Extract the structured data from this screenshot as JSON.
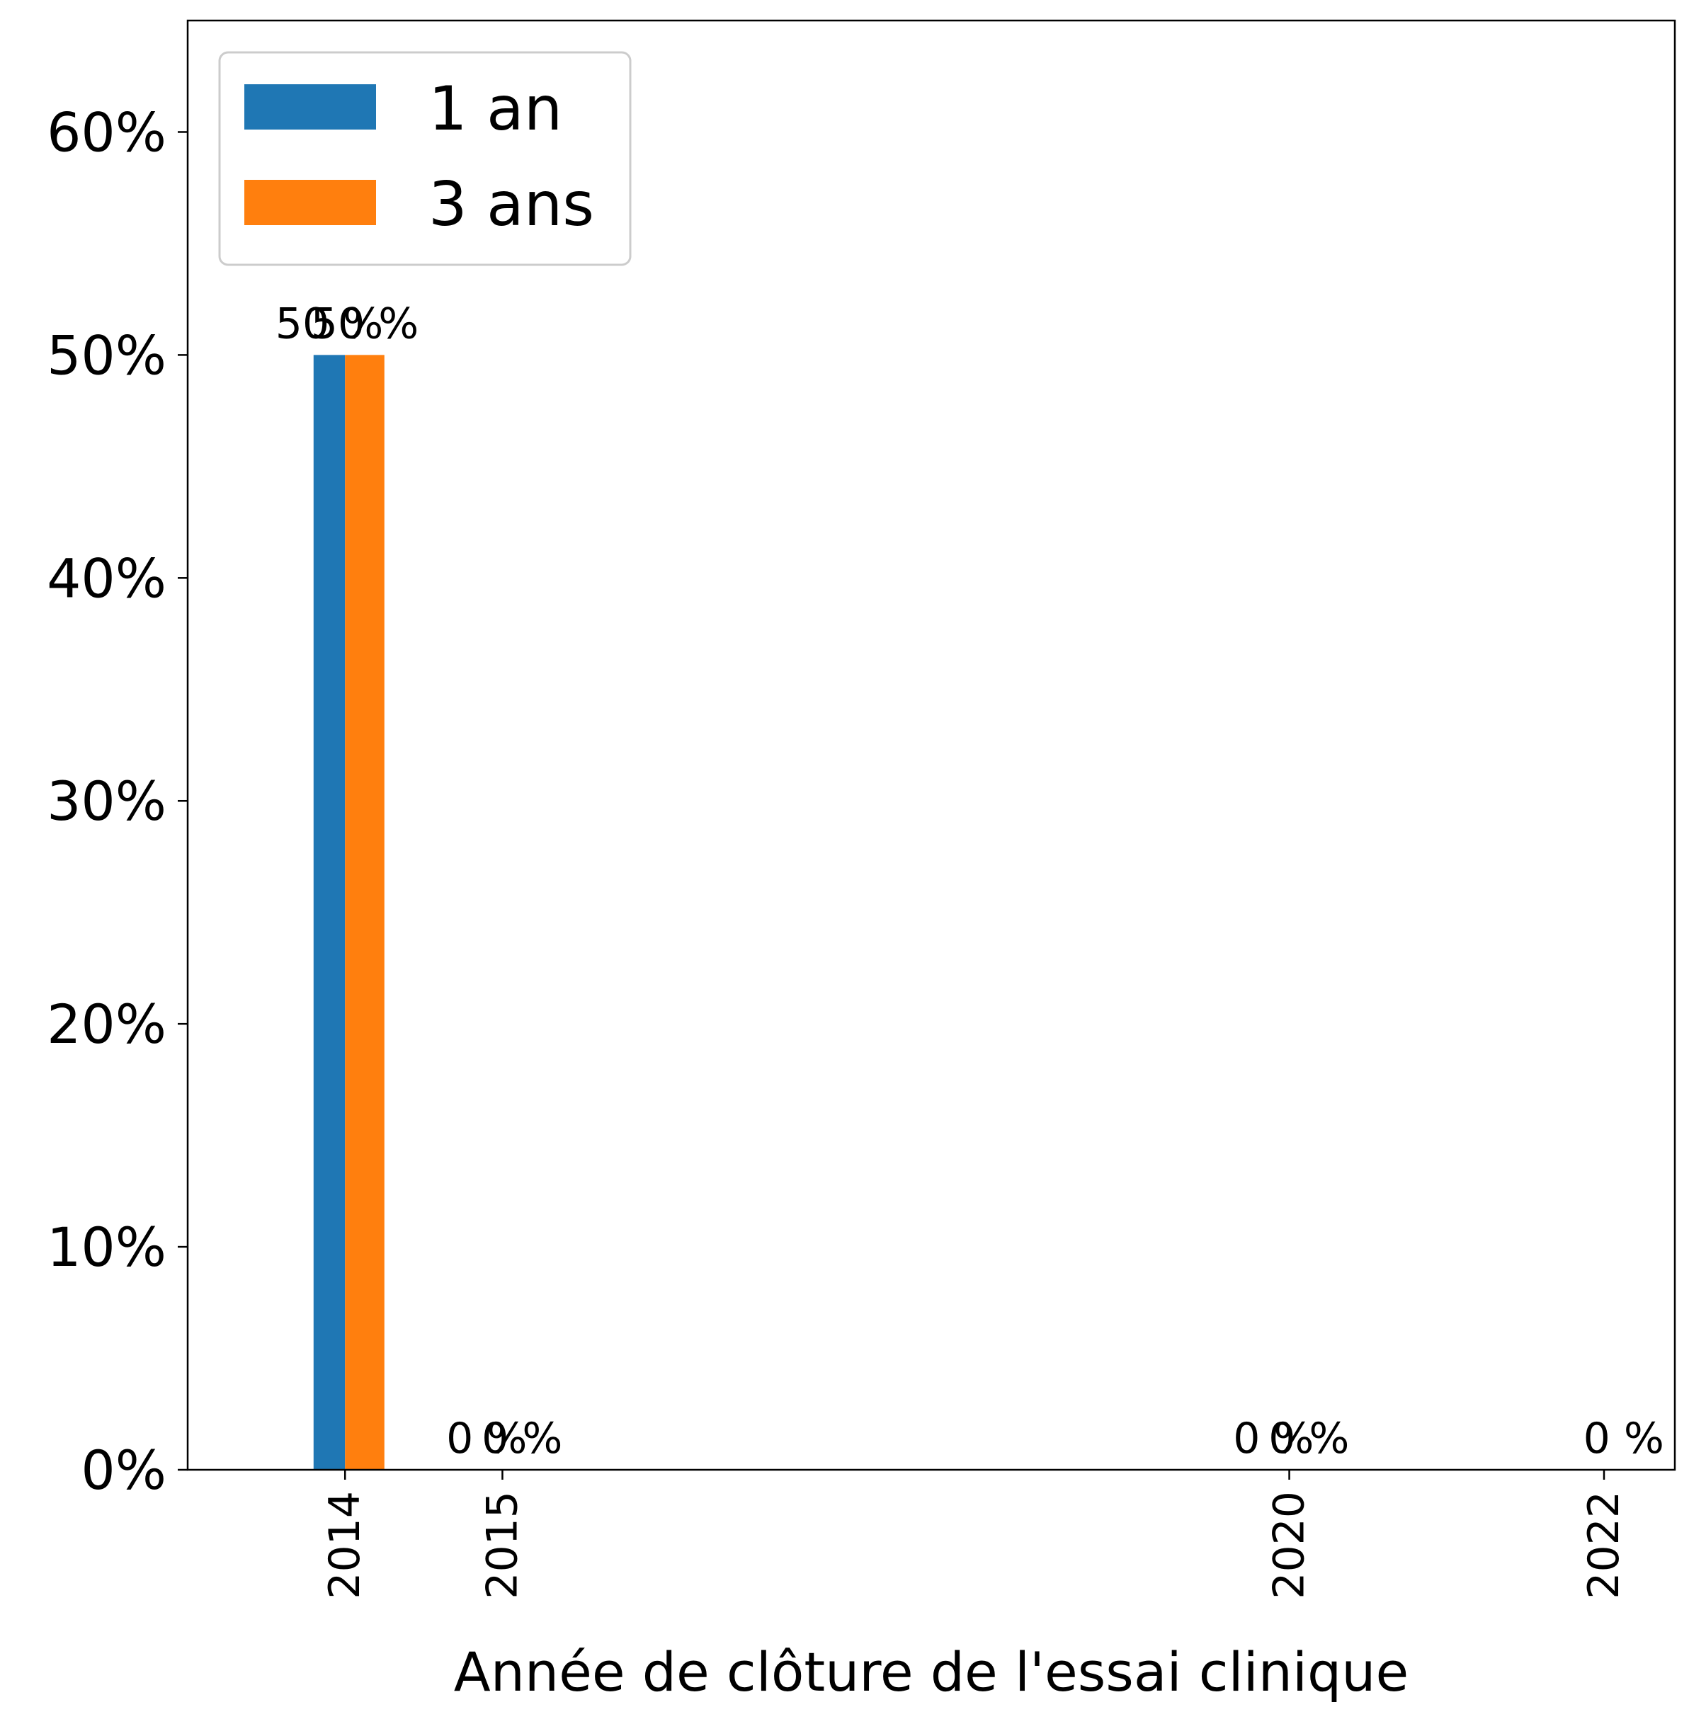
{
  "chart_data": {
    "type": "bar",
    "title": "",
    "xlabel": "Année de clôture de l'essai clinique",
    "ylabel": "",
    "x_scale": "linear (years)",
    "xlim": [
      2013.0,
      2022.45
    ],
    "ylim": [
      0,
      65
    ],
    "yticks": [
      0,
      10,
      20,
      30,
      40,
      50,
      60
    ],
    "ytick_labels": [
      "0%",
      "10%",
      "20%",
      "30%",
      "40%",
      "50%",
      "60%"
    ],
    "categories": [
      "2014",
      "2015",
      "2020",
      "2022"
    ],
    "x": [
      2014,
      2015,
      2020,
      2022
    ],
    "series": [
      {
        "name": "1 an",
        "color": "#1f77b4",
        "values": [
          50,
          0,
          0,
          null
        ],
        "labels": [
          "50 %",
          "0 %",
          "0 %",
          null
        ]
      },
      {
        "name": "3 ans",
        "color": "#ff7f0e",
        "values": [
          50,
          0,
          0,
          0
        ],
        "labels": [
          "50 %",
          "0 %",
          "0 %",
          "0 %"
        ]
      }
    ],
    "legend": {
      "position": "top-left"
    },
    "grid": false
  }
}
